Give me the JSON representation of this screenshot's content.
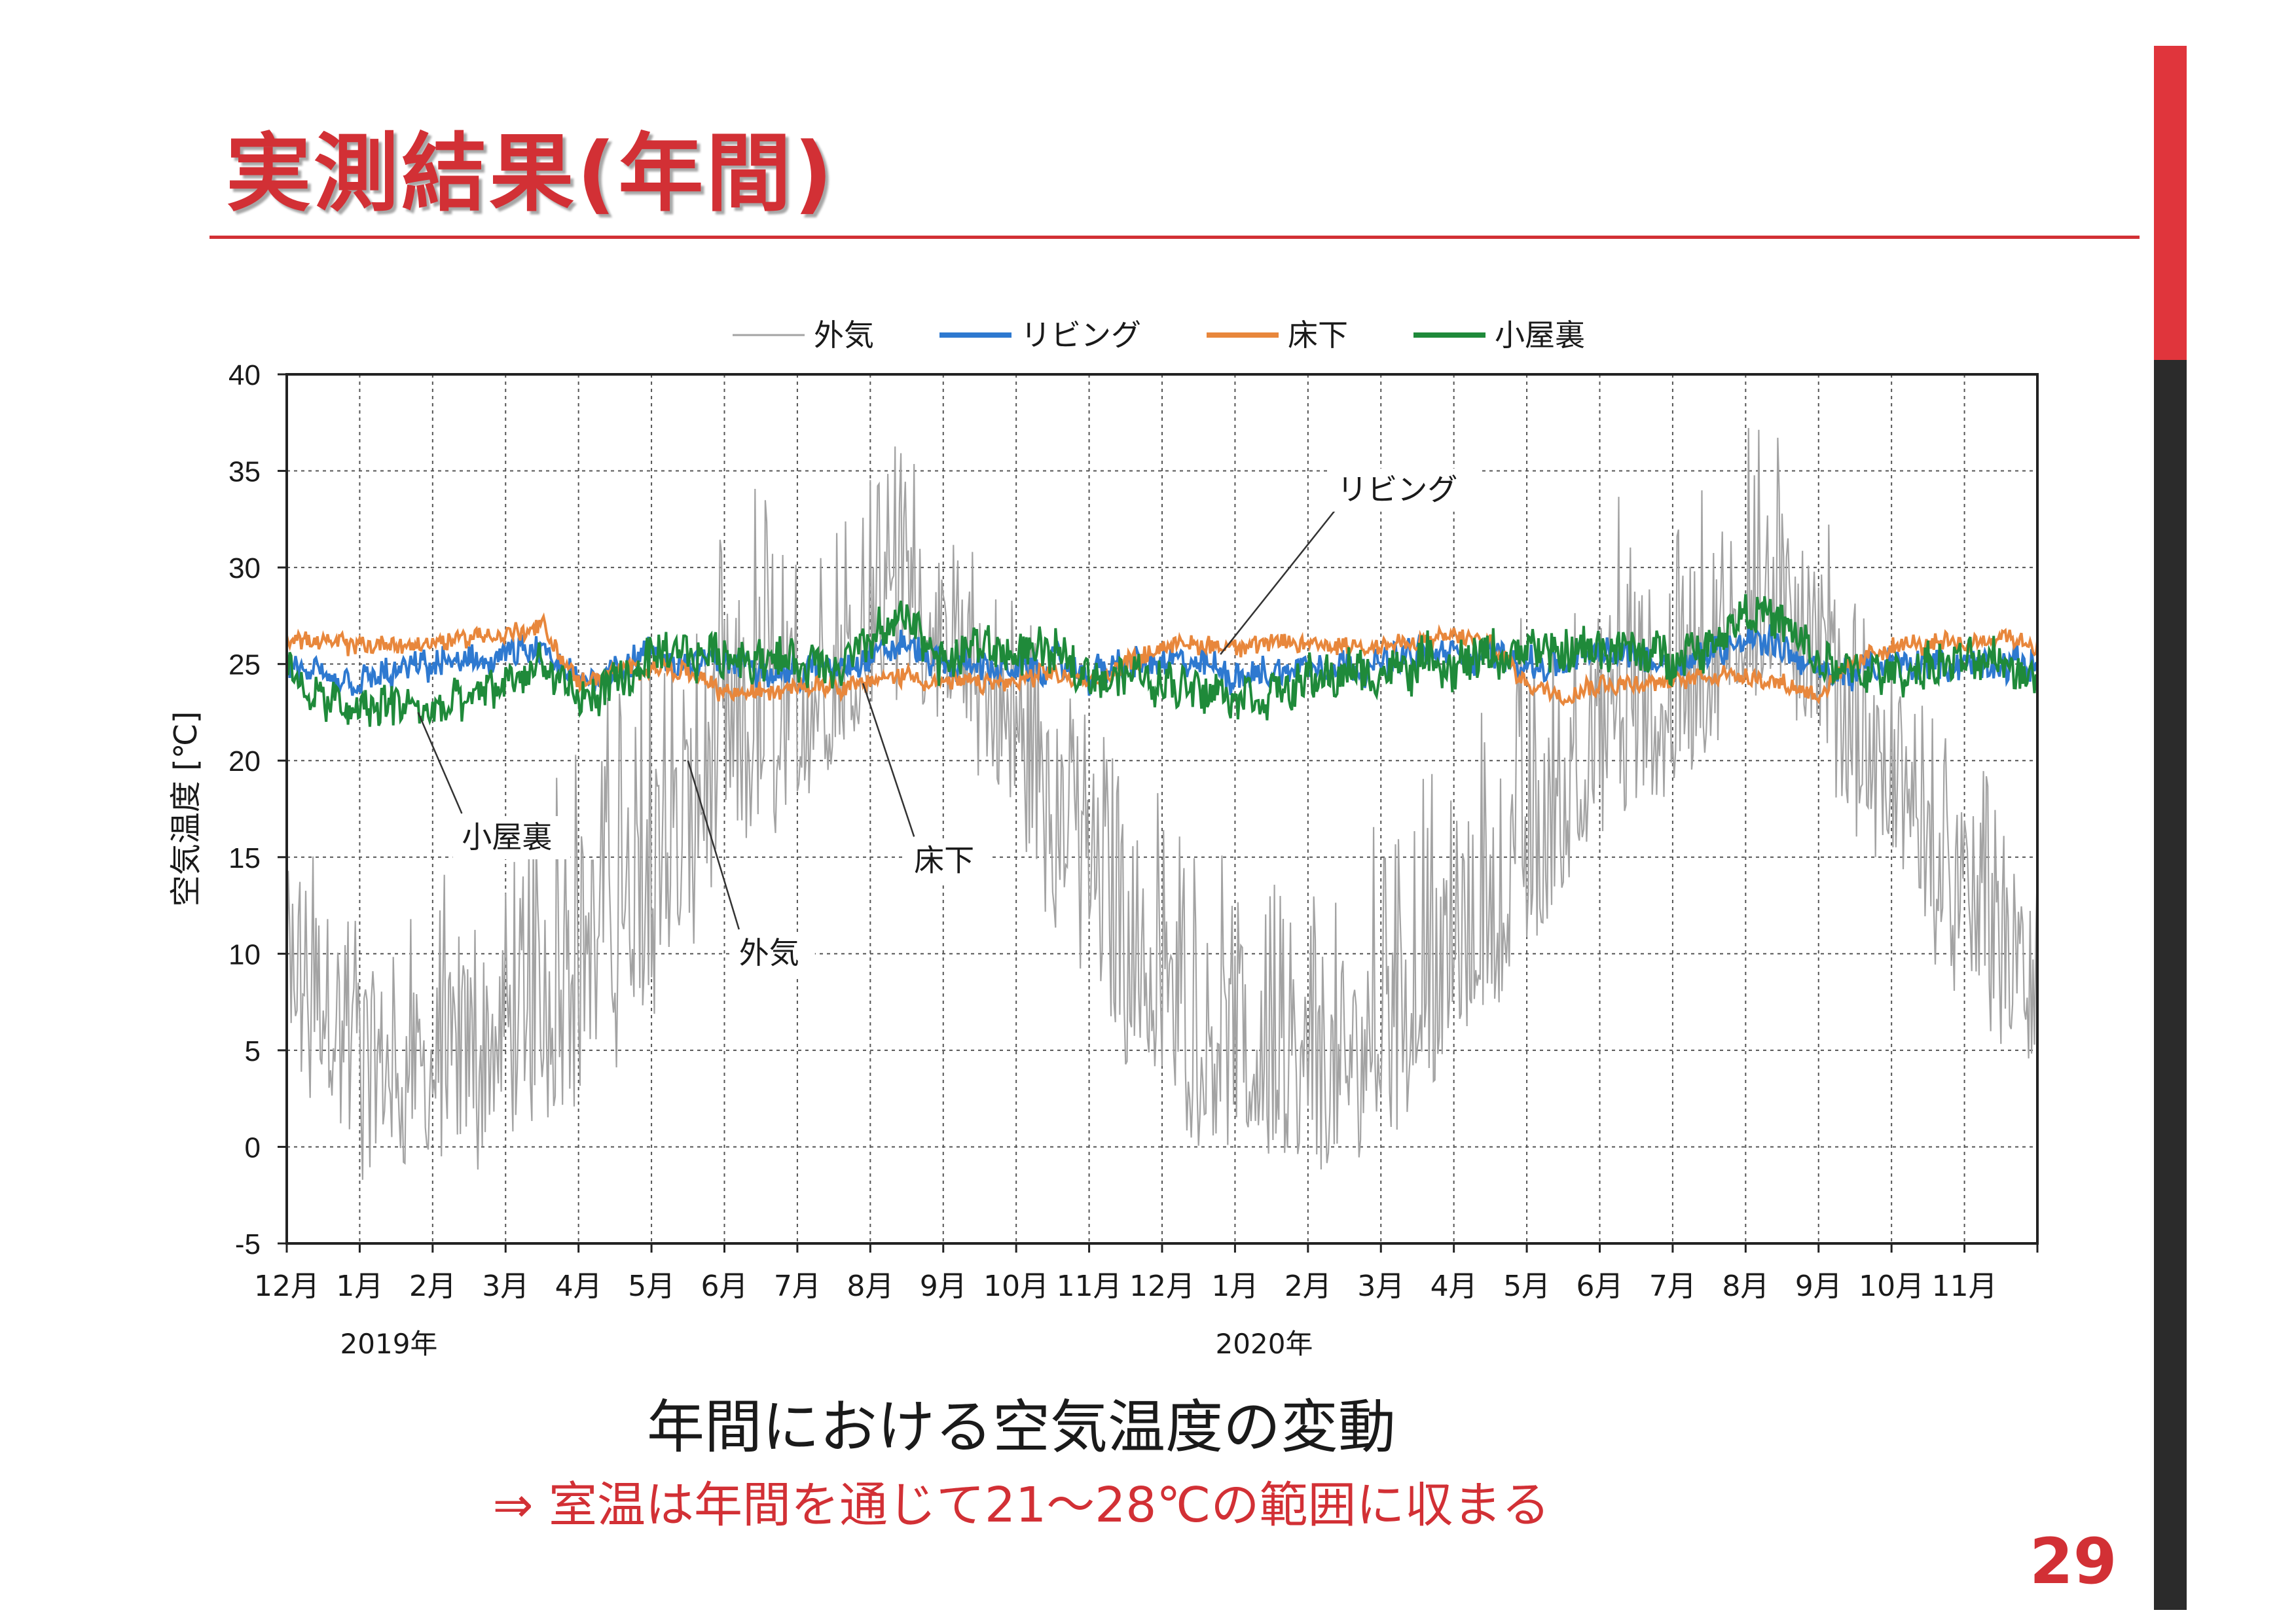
{
  "slide": {
    "title": "実測結果(年間)",
    "caption": "年間における空気温度の変動",
    "conclusion": "⇒ 室温は年間を通じて21～28℃の範囲に収まる",
    "page_number": "29"
  },
  "colors": {
    "accent": "#d23035",
    "outdoor": "#a3a3a3",
    "living": "#2e79d0",
    "underfloor": "#e8873c",
    "attic": "#1f8a3a"
  },
  "chart_data": {
    "type": "line",
    "ylabel": "空気温度 [℃]",
    "ylim": [
      -5,
      40
    ],
    "yticks": [
      -5,
      0,
      5,
      10,
      15,
      20,
      25,
      30,
      35,
      40
    ],
    "grid": true,
    "legend_position": "top",
    "x_tick_labels": [
      "12月",
      "1月",
      "2月",
      "3月",
      "4月",
      "5月",
      "6月",
      "7月",
      "8月",
      "9月",
      "10月",
      "11月",
      "12月",
      "1月",
      "2月",
      "3月",
      "4月",
      "5月",
      "6月",
      "7月",
      "8月",
      "9月",
      "10月",
      "11月"
    ],
    "year_labels": [
      {
        "text": "2019年",
        "month_index": 1.4
      },
      {
        "text": "2020年",
        "month_index": 13.4
      }
    ],
    "x_months_index": [
      0,
      0.5,
      1,
      1.5,
      2,
      2.5,
      3,
      3.5,
      4,
      4.5,
      5,
      5.5,
      6,
      6.5,
      7,
      7.5,
      8,
      8.5,
      9,
      9.5,
      10,
      10.5,
      11,
      11.5,
      12,
      12.5,
      13,
      13.5,
      14,
      14.5,
      15,
      15.5,
      16,
      16.5,
      17,
      17.5,
      18,
      18.5,
      19,
      19.5,
      20,
      20.5,
      21,
      21.5,
      22,
      22.5,
      23,
      23.5,
      24
    ],
    "series": [
      {
        "name": "外気",
        "color_key": "outdoor",
        "mean": [
          10,
          8,
          5,
          4,
          4,
          5,
          6,
          8,
          10,
          12,
          14,
          17,
          20,
          21,
          22,
          24,
          27,
          29,
          26,
          24,
          21,
          18,
          15,
          11,
          8,
          6,
          5,
          4,
          4,
          4,
          6,
          8,
          10,
          12,
          15,
          18,
          21,
          22,
          23,
          24,
          28,
          28,
          26,
          21,
          19,
          16,
          13,
          10,
          8
        ],
        "min": [
          3,
          0,
          -3,
          -1,
          -2,
          -2,
          0,
          1,
          2,
          4,
          6,
          9,
          14,
          15,
          17,
          19,
          23,
          23,
          22,
          19,
          15,
          11,
          8,
          4,
          2,
          0,
          0,
          -1,
          -3,
          -1,
          0,
          2,
          4,
          7,
          9,
          13,
          16,
          17,
          18,
          20,
          23,
          23,
          20,
          16,
          13,
          10,
          7,
          5,
          3
        ],
        "max": [
          19,
          17,
          14,
          14,
          13,
          17,
          18,
          19,
          21,
          25,
          26,
          28,
          32,
          35,
          30,
          32,
          36,
          38,
          32,
          31,
          30,
          27,
          22,
          21,
          18,
          16,
          15,
          14,
          14,
          15,
          17,
          19,
          21,
          24,
          29,
          30,
          33,
          35,
          33,
          35,
          38,
          37,
          35,
          29,
          25,
          23,
          20,
          19,
          17
        ]
      },
      {
        "name": "リビング",
        "color_key": "living",
        "mean": [
          25,
          24,
          24,
          24.5,
          25,
          25,
          25.5,
          25.5,
          24,
          25,
          25.5,
          25,
          25,
          25,
          24.5,
          25,
          25.5,
          26,
          25,
          25,
          24.5,
          25,
          24.5,
          25,
          25,
          25,
          24.5,
          24.5,
          25,
          25,
          25,
          25.5,
          25.5,
          25.5,
          25,
          25,
          25.5,
          25.5,
          25,
          25.5,
          26.5,
          26,
          24.5,
          24.5,
          25,
          25,
          25,
          25,
          25
        ],
        "amp": [
          1.0,
          1.0,
          1.0,
          1.0,
          1.0,
          1.0,
          1.0,
          1.0,
          1.0,
          1.0,
          1.0,
          1.0,
          1.0,
          1.0,
          1.0,
          1.0,
          1.0,
          1.0,
          1.0,
          1.0,
          1.0,
          1.0,
          1.0,
          1.0,
          1.0,
          1.0,
          1.0,
          1.0,
          1.0,
          1.0,
          1.0,
          1.0,
          1.0,
          1.0,
          1.0,
          1.0,
          1.0,
          1.0,
          1.0,
          1.0,
          1.0,
          1.0,
          1.0,
          1.0,
          1.0,
          1.0,
          1.0,
          1.0,
          1.0
        ]
      },
      {
        "name": "床下",
        "color_key": "underfloor",
        "mean": [
          26.5,
          26,
          26,
          26,
          26,
          26.5,
          26.5,
          27,
          24,
          24.5,
          25,
          24.5,
          23.5,
          23.5,
          24,
          24,
          24,
          24.5,
          24,
          24,
          24,
          24.5,
          24,
          25,
          26,
          26,
          26,
          26,
          26,
          26,
          26,
          26,
          26.5,
          26,
          24,
          23.5,
          24,
          24,
          24,
          24.5,
          24.5,
          24,
          23.5,
          25,
          26,
          26,
          26,
          26.5,
          26
        ],
        "amp": [
          0.6,
          0.6,
          0.6,
          0.6,
          0.6,
          0.6,
          0.6,
          0.6,
          0.6,
          0.6,
          0.6,
          0.6,
          0.6,
          0.6,
          0.6,
          0.6,
          0.6,
          0.6,
          0.6,
          0.6,
          0.6,
          0.6,
          0.6,
          0.6,
          0.6,
          0.6,
          0.6,
          0.6,
          0.6,
          0.6,
          0.6,
          0.6,
          0.6,
          0.6,
          0.6,
          0.6,
          0.6,
          0.6,
          0.6,
          0.6,
          0.6,
          0.6,
          0.6,
          0.6,
          0.6,
          0.6,
          0.6,
          0.6,
          0.6
        ]
      },
      {
        "name": "小屋裏",
        "color_key": "attic",
        "mean": [
          24.5,
          23,
          22.5,
          23,
          22.5,
          23,
          24,
          25,
          23,
          24,
          25,
          25.5,
          25.5,
          25.5,
          25,
          25,
          26,
          27.5,
          25,
          26,
          25.5,
          25.5,
          24.5,
          24.5,
          24,
          24,
          23.5,
          23.5,
          24,
          24.5,
          24.5,
          25,
          25,
          25.5,
          25.5,
          25.5,
          26,
          25.5,
          25.5,
          26,
          28,
          27,
          25,
          24.5,
          24.5,
          25,
          25,
          25,
          24.5
        ],
        "amp": [
          1.4,
          1.4,
          1.4,
          1.4,
          1.4,
          1.4,
          1.4,
          1.4,
          1.4,
          1.4,
          1.4,
          1.4,
          1.4,
          1.4,
          1.4,
          1.4,
          1.4,
          1.4,
          1.4,
          1.4,
          1.4,
          1.4,
          1.4,
          1.4,
          1.4,
          1.4,
          1.4,
          1.4,
          1.4,
          1.4,
          1.4,
          1.4,
          1.4,
          1.4,
          1.4,
          1.4,
          1.4,
          1.4,
          1.4,
          1.4,
          1.4,
          1.4,
          1.4,
          1.4,
          1.4,
          1.4,
          1.4,
          1.4,
          1.4
        ]
      }
    ],
    "annotations": [
      {
        "text": "リビング",
        "target_series": "リビング",
        "target_month_index": 12.8,
        "target_value": 25.5,
        "label_month_index": 14.4,
        "label_value": 33.5
      },
      {
        "text": "小屋裏",
        "target_series": "小屋裏",
        "target_month_index": 1.8,
        "target_value": 22.5,
        "label_month_index": 2.4,
        "label_value": 15.5
      },
      {
        "text": "床下",
        "target_series": "床下",
        "target_month_index": 7.9,
        "target_value": 24,
        "label_month_index": 8.6,
        "label_value": 14.3
      },
      {
        "text": "外気",
        "target_series": "外気",
        "target_month_index": 5.5,
        "target_value": 20,
        "label_month_index": 6.2,
        "label_value": 9.5
      }
    ]
  }
}
